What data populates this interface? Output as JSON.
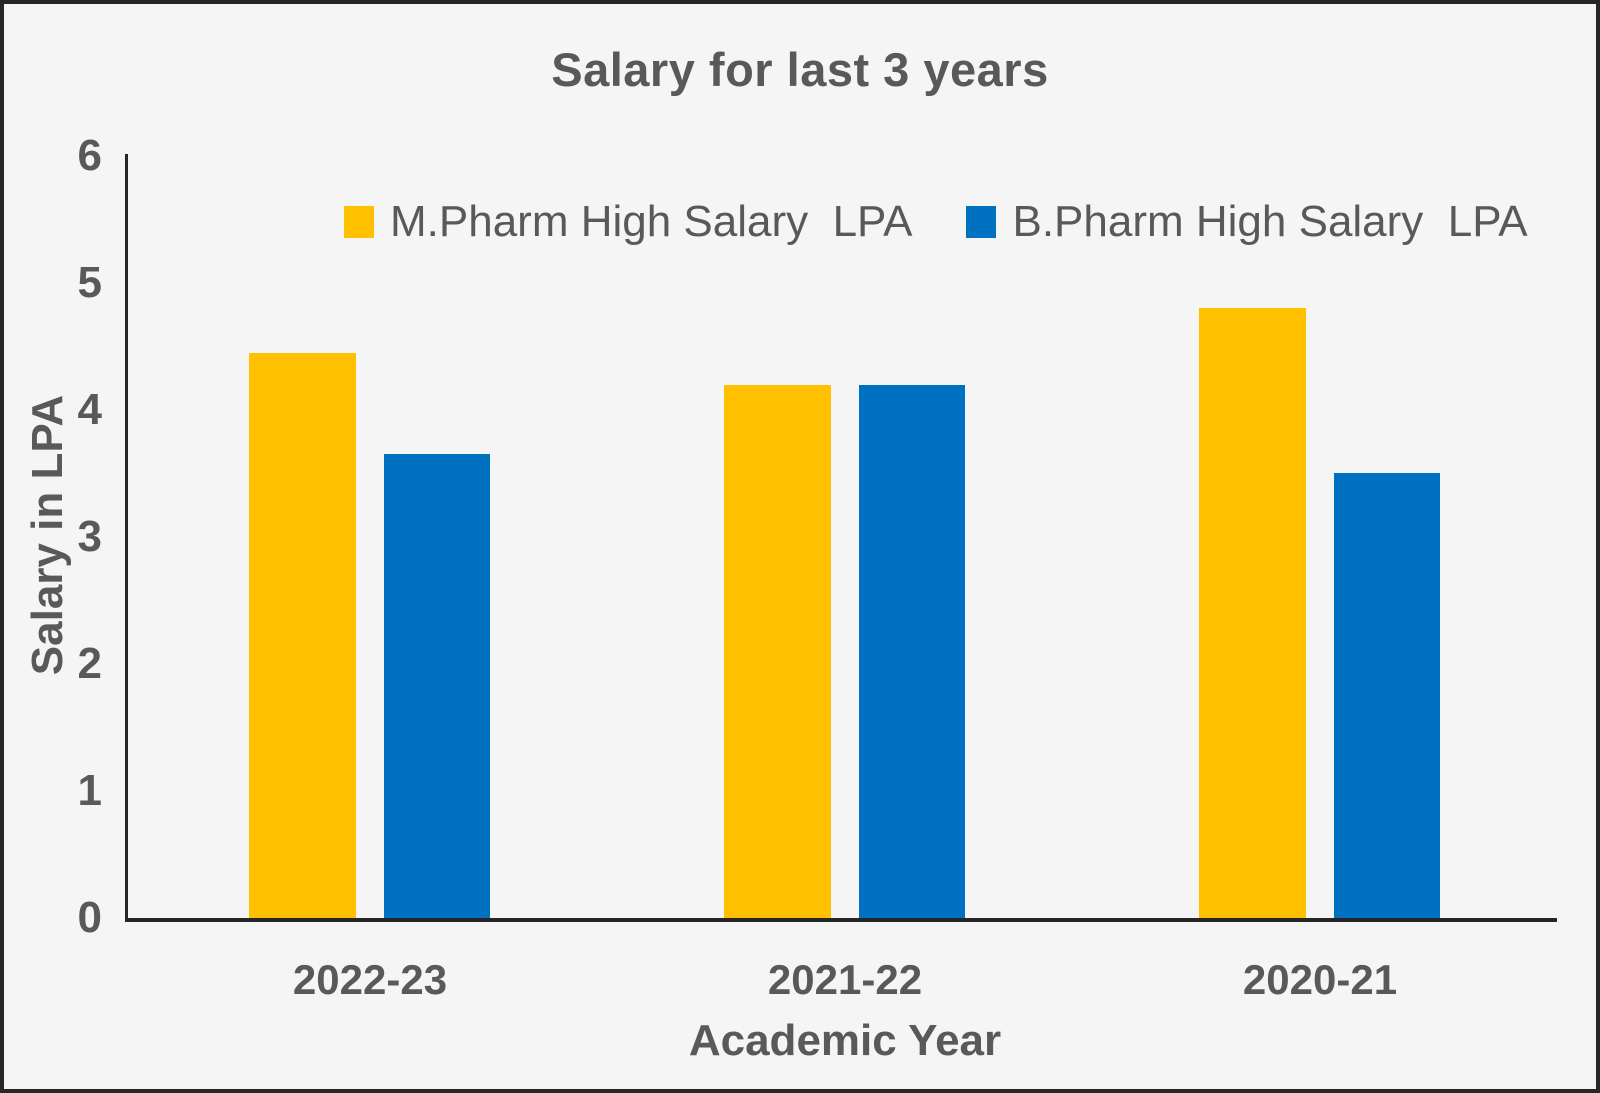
{
  "chart_data": {
    "type": "bar",
    "title": "Salary for last 3 years",
    "xlabel": "Academic Year",
    "ylabel": "Salary in LPA",
    "categories": [
      "2022-23",
      "2021-22",
      "2020-21"
    ],
    "series": [
      {
        "name": "M.Pharm High Salary  LPA",
        "color": "#FFC000",
        "values": [
          4.45,
          4.2,
          4.8
        ]
      },
      {
        "name": "B.Pharm High Salary  LPA",
        "color": "#0070C0",
        "values": [
          3.65,
          4.2,
          3.5
        ]
      }
    ],
    "ylim": [
      0,
      6
    ],
    "yticks": [
      0,
      1,
      2,
      3,
      4,
      5,
      6
    ],
    "grid": false,
    "legend_position": "top-center"
  },
  "colors": {
    "background": "#F5F5F5",
    "border": "#262626",
    "axis": "#262626",
    "text": "#595959",
    "mpharm_bar": "#FFC000",
    "bpharm_bar": "#0070C0"
  }
}
